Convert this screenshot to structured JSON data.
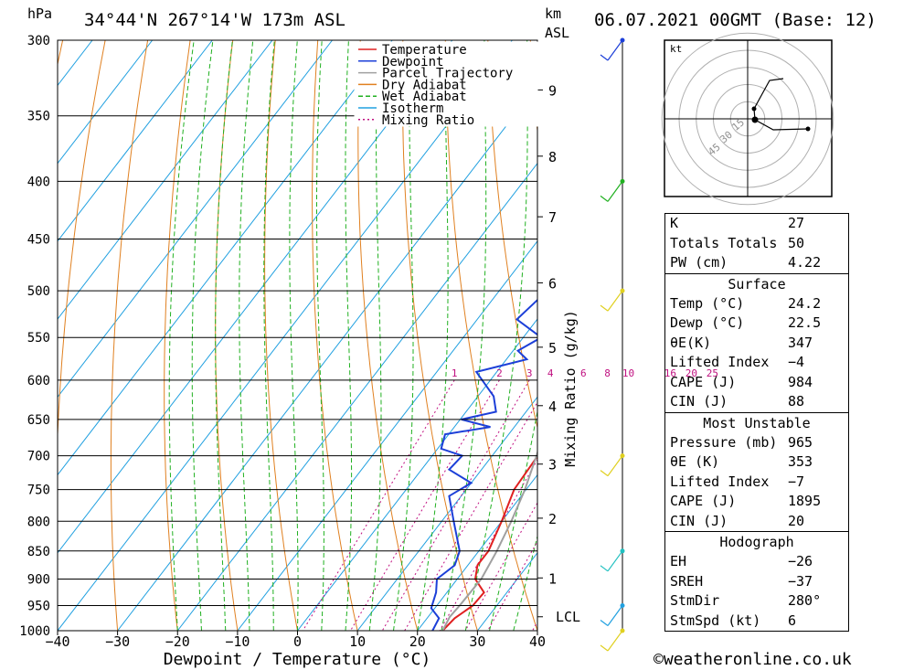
{
  "header": {
    "station": "34°44'N  267°14'W  173m  ASL",
    "date": "06.07.2021  00GMT  (Base: 12)",
    "hpa_label": "hPa",
    "km_label": "km",
    "asl_label": "ASL"
  },
  "chart_data": {
    "type": "line",
    "title": "",
    "xlabel": "Dewpoint / Temperature (°C)",
    "ylabel": "hPa",
    "right_axis_label": "Mixing Ratio (g/kg)",
    "xlim": [
      -40,
      40
    ],
    "ylim": [
      1000,
      300
    ],
    "x_ticks": [
      "−40",
      "−30",
      "−20",
      "−10",
      "0",
      "10",
      "20",
      "30",
      "40"
    ],
    "pressure_levels": [
      300,
      350,
      400,
      450,
      500,
      550,
      600,
      650,
      700,
      750,
      800,
      850,
      900,
      950,
      1000
    ],
    "km_ticks": [
      {
        "label": "1",
        "p": 898
      },
      {
        "label": "2",
        "p": 795
      },
      {
        "label": "3",
        "p": 712
      },
      {
        "label": "4",
        "p": 632
      },
      {
        "label": "5",
        "p": 561
      },
      {
        "label": "6",
        "p": 492
      },
      {
        "label": "7",
        "p": 430
      },
      {
        "label": "8",
        "p": 380
      },
      {
        "label": "9",
        "p": 332
      }
    ],
    "lcl": {
      "label": "LCL",
      "p": 972
    },
    "mixing_ratio_labels": [
      {
        "label": "1",
        "t": -6
      },
      {
        "label": "2",
        "t": 1.5
      },
      {
        "label": "3",
        "t": 6.5
      },
      {
        "label": "4",
        "t": 10
      },
      {
        "label": "6",
        "t": 15.5
      },
      {
        "label": "8",
        "t": 19.5
      },
      {
        "label": "10",
        "t": 23
      },
      {
        "label": "16",
        "t": 30
      },
      {
        "label": "20",
        "t": 33.5
      },
      {
        "label": "25",
        "t": 37
      }
    ],
    "legend": [
      {
        "name": "Temperature",
        "color": "#e02020",
        "dash": ""
      },
      {
        "name": "Dewpoint",
        "color": "#1c3fd8",
        "dash": ""
      },
      {
        "name": "Parcel Trajectory",
        "color": "#a0a0a0",
        "dash": ""
      },
      {
        "name": "Dry Adiabat",
        "color": "#e08020",
        "dash": ""
      },
      {
        "name": "Wet Adiabat",
        "color": "#20b020",
        "dash": "5,3"
      },
      {
        "name": "Isotherm",
        "color": "#20a0e0",
        "dash": ""
      },
      {
        "name": "Mixing Ratio",
        "color": "#c01080",
        "dash": "2,3"
      }
    ],
    "series": [
      {
        "name": "Temperature",
        "color": "#e02020",
        "points": [
          [
            1000,
            24.2
          ],
          [
            975,
            24.6
          ],
          [
            950,
            26.0
          ],
          [
            925,
            26.2
          ],
          [
            900,
            23.0
          ],
          [
            875,
            21.6
          ],
          [
            850,
            21.6
          ],
          [
            800,
            20.0
          ],
          [
            750,
            18.0
          ],
          [
            700,
            17.6
          ],
          [
            680,
            18.0
          ],
          [
            650,
            17.8
          ],
          [
            630,
            15.6
          ],
          [
            600,
            14.0
          ],
          [
            550,
            9.6
          ],
          [
            500,
            4.4
          ],
          [
            470,
            2.0
          ],
          [
            450,
            2.0
          ],
          [
            440,
            3.8
          ],
          [
            425,
            2.0
          ],
          [
            400,
            -1.4
          ],
          [
            375,
            -5.6
          ],
          [
            350,
            -8.0
          ],
          [
            325,
            -12.6
          ],
          [
            300,
            -14.0
          ]
        ]
      },
      {
        "name": "Dewpoint",
        "color": "#1c3fd8",
        "points": [
          [
            1000,
            22.5
          ],
          [
            975,
            22.0
          ],
          [
            955,
            19.4
          ],
          [
            925,
            18.2
          ],
          [
            900,
            16.6
          ],
          [
            875,
            17.8
          ],
          [
            850,
            16.8
          ],
          [
            800,
            12.0
          ],
          [
            760,
            8.0
          ],
          [
            740,
            10.0
          ],
          [
            720,
            4.6
          ],
          [
            700,
            5.0
          ],
          [
            690,
            0.6
          ],
          [
            670,
            -0.6
          ],
          [
            660,
            6.0
          ],
          [
            650,
            0.2
          ],
          [
            640,
            5.0
          ],
          [
            620,
            2.6
          ],
          [
            590,
            -3.4
          ],
          [
            575,
            3.4
          ],
          [
            565,
            0.8
          ],
          [
            550,
            3.0
          ],
          [
            530,
            -3.4
          ],
          [
            500,
            -2.0
          ],
          [
            470,
            -2.8
          ],
          [
            455,
            -0.6
          ],
          [
            445,
            -4.0
          ],
          [
            425,
            -8.4
          ],
          [
            410,
            -8.0
          ],
          [
            400,
            -12.0
          ],
          [
            385,
            -9.6
          ],
          [
            375,
            -9.0
          ],
          [
            365,
            -20.0
          ],
          [
            350,
            -22.6
          ],
          [
            320,
            -28.0
          ],
          [
            310,
            -29.6
          ],
          [
            300,
            -30.0
          ]
        ]
      },
      {
        "name": "Parcel Trajectory",
        "color": "#a0a0a0",
        "points": [
          [
            1000,
            24.2
          ],
          [
            972,
            23.6
          ],
          [
            950,
            23.8
          ],
          [
            900,
            24.0
          ],
          [
            850,
            23.0
          ],
          [
            800,
            21.6
          ],
          [
            750,
            19.8
          ],
          [
            700,
            17.4
          ],
          [
            650,
            14.6
          ],
          [
            600,
            11.0
          ],
          [
            550,
            7.4
          ],
          [
            500,
            3.0
          ],
          [
            450,
            -2.2
          ],
          [
            400,
            -8.4
          ],
          [
            370,
            -13.2
          ]
        ]
      }
    ],
    "wind_barbs": [
      {
        "p": 1000,
        "color": "#e0d020"
      },
      {
        "p": 950,
        "color": "#20a0e0"
      },
      {
        "p": 850,
        "color": "#20c0c0"
      },
      {
        "p": 700,
        "color": "#e0d020"
      },
      {
        "p": 500,
        "color": "#e0d020"
      },
      {
        "p": 400,
        "color": "#20b020"
      },
      {
        "p": 300,
        "color": "#1c3fd8"
      }
    ]
  },
  "hodograph": {
    "unit_label": "kt",
    "ring_labels": [
      "15",
      "30",
      "45"
    ]
  },
  "indices": {
    "k_label": "K",
    "k": "27",
    "tt_label": "Totals Totals",
    "tt": "50",
    "pw_label": "PW (cm)",
    "pw": "4.22"
  },
  "surface": {
    "title": "Surface",
    "temp_label": "Temp (°C)",
    "temp": "24.2",
    "dewp_label": "Dewp (°C)",
    "dewp": "22.5",
    "theta_label": "θE(K)",
    "theta": "347",
    "li_label": "Lifted Index",
    "li": "−4",
    "cape_label": "CAPE (J)",
    "cape": "984",
    "cin_label": "CIN (J)",
    "cin": "88"
  },
  "most_unstable": {
    "title": "Most Unstable",
    "pressure_label": "Pressure (mb)",
    "pressure": "965",
    "theta_label": "θE (K)",
    "theta": "353",
    "li_label": "Lifted Index",
    "li": "−7",
    "cape_label": "CAPE (J)",
    "cape": "1895",
    "cin_label": "CIN (J)",
    "cin": "20"
  },
  "hodograph_params": {
    "title": "Hodograph",
    "eh_label": "EH",
    "eh": "−26",
    "sreh_label": "SREH",
    "sreh": "−37",
    "stmdir_label": "StmDir",
    "stmdir": "280°",
    "stmspd_label": "StmSpd (kt)",
    "stmspd": "6"
  },
  "footer": {
    "copyright": "©weatheronline.co.uk"
  }
}
